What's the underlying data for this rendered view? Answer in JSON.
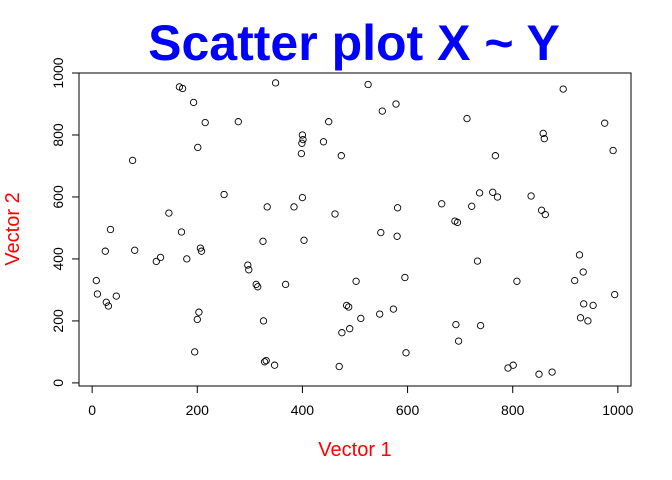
{
  "chart_data": {
    "type": "scatter",
    "title": "Scatter plot X ~ Y",
    "xlabel": "Vector 1",
    "ylabel": "Vector 2",
    "xlim": [
      -25,
      1025
    ],
    "ylim": [
      -10,
      1000
    ],
    "xticks": [
      0,
      200,
      400,
      600,
      800,
      1000
    ],
    "yticks": [
      0,
      200,
      400,
      600,
      800,
      1000
    ],
    "title_color": "#0000ff",
    "label_color": "#ff0000",
    "grid": false,
    "points": [
      [
        8,
        330
      ],
      [
        10,
        287
      ],
      [
        25,
        425
      ],
      [
        27,
        260
      ],
      [
        31,
        248
      ],
      [
        35,
        495
      ],
      [
        46,
        280
      ],
      [
        77,
        718
      ],
      [
        81,
        428
      ],
      [
        122,
        392
      ],
      [
        130,
        405
      ],
      [
        146,
        548
      ],
      [
        166,
        955
      ],
      [
        170,
        487
      ],
      [
        172,
        950
      ],
      [
        180,
        400
      ],
      [
        193,
        905
      ],
      [
        195,
        100
      ],
      [
        200,
        205
      ],
      [
        201,
        760
      ],
      [
        203,
        228
      ],
      [
        206,
        435
      ],
      [
        208,
        425
      ],
      [
        215,
        840
      ],
      [
        251,
        608
      ],
      [
        278,
        843
      ],
      [
        296,
        380
      ],
      [
        298,
        365
      ],
      [
        312,
        318
      ],
      [
        315,
        310
      ],
      [
        325,
        457
      ],
      [
        326,
        200
      ],
      [
        328,
        68
      ],
      [
        331,
        72
      ],
      [
        333,
        568
      ],
      [
        347,
        57
      ],
      [
        349,
        968
      ],
      [
        368,
        318
      ],
      [
        384,
        568
      ],
      [
        398,
        740
      ],
      [
        399,
        773
      ],
      [
        400,
        800
      ],
      [
        400,
        598
      ],
      [
        401,
        785
      ],
      [
        403,
        460
      ],
      [
        440,
        778
      ],
      [
        450,
        843
      ],
      [
        462,
        545
      ],
      [
        470,
        53
      ],
      [
        474,
        733
      ],
      [
        475,
        162
      ],
      [
        484,
        250
      ],
      [
        488,
        245
      ],
      [
        490,
        175
      ],
      [
        502,
        328
      ],
      [
        511,
        208
      ],
      [
        525,
        963
      ],
      [
        547,
        222
      ],
      [
        549,
        485
      ],
      [
        552,
        877
      ],
      [
        573,
        238
      ],
      [
        578,
        900
      ],
      [
        580,
        473
      ],
      [
        581,
        565
      ],
      [
        595,
        340
      ],
      [
        597,
        97
      ],
      [
        665,
        578
      ],
      [
        690,
        522
      ],
      [
        692,
        188
      ],
      [
        695,
        518
      ],
      [
        697,
        135
      ],
      [
        713,
        853
      ],
      [
        722,
        570
      ],
      [
        733,
        393
      ],
      [
        737,
        613
      ],
      [
        739,
        185
      ],
      [
        762,
        615
      ],
      [
        767,
        733
      ],
      [
        771,
        600
      ],
      [
        791,
        48
      ],
      [
        801,
        57
      ],
      [
        808,
        328
      ],
      [
        835,
        603
      ],
      [
        850,
        28
      ],
      [
        855,
        557
      ],
      [
        858,
        805
      ],
      [
        860,
        788
      ],
      [
        862,
        543
      ],
      [
        875,
        35
      ],
      [
        896,
        948
      ],
      [
        918,
        330
      ],
      [
        927,
        413
      ],
      [
        929,
        210
      ],
      [
        934,
        358
      ],
      [
        935,
        255
      ],
      [
        943,
        200
      ],
      [
        953,
        250
      ],
      [
        975,
        838
      ],
      [
        991,
        750
      ],
      [
        994,
        285
      ]
    ]
  }
}
